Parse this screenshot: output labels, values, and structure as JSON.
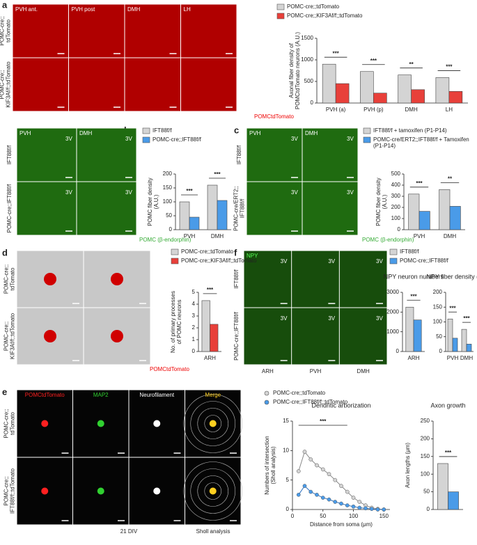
{
  "figure": {
    "a": {
      "letter": "a",
      "columns": [
        "PVH ant.",
        "PVH post",
        "DMH",
        "LH"
      ],
      "rows": [
        [
          "POMC-cre;;",
          "tdTomato"
        ],
        [
          "POMC-cre;;",
          "KIF3Af/f;;tdTomato"
        ]
      ],
      "caption": "POMCtdTomato"
    },
    "b": {
      "letter": "b",
      "columns": [
        "PVH",
        "DMH"
      ],
      "rows": [
        [
          "IFT88f/f"
        ],
        [
          "POMC-cre;;IFT88f/f"
        ]
      ],
      "marker": "3V",
      "caption": "POMC (β-endorphin)"
    },
    "c": {
      "letter": "c",
      "columns": [
        "PVH",
        "DMH"
      ],
      "rows": [
        [
          "IFT88f/f"
        ],
        [
          "POMC-cre/ERT2;;",
          "IFT88f/f"
        ]
      ],
      "marker": "3V",
      "caption": "POMC (β-endorphin)"
    },
    "d": {
      "letter": "d",
      "rows": [
        [
          "POMC-cre;;",
          "tdTomato"
        ],
        [
          "POMC-cre;;",
          "KIF3Af/f;;tdTomato"
        ]
      ],
      "caption": "POMCtdTomato"
    },
    "f": {
      "letter": "f",
      "tag": "NPY",
      "columns": [
        "ARH",
        "PVH",
        "DMH"
      ],
      "rows": [
        [
          "IFT88f/f"
        ],
        [
          "POMC-cre;;IFT88f/f"
        ]
      ],
      "marker": "3V"
    },
    "e": {
      "letter": "e",
      "columns": [
        "POMCtdTomato",
        "MAP2",
        "Neurofilament",
        "Merge"
      ],
      "rows": [
        [
          "POMC-cre;;",
          "tdTomato"
        ],
        [
          "POMC-cre;;",
          "IFT88f/f;;tdTomato"
        ]
      ],
      "captions": [
        "21 DIV",
        "Sholl analysis"
      ]
    }
  },
  "chart_data": [
    {
      "type": "bar",
      "ylabel": [
        "Axonal fiber density of",
        "POMCtdTomato neurons (A.U.)"
      ],
      "categories": [
        "PVH (a)",
        "PVH (p)",
        "DMH",
        "LH"
      ],
      "series": [
        {
          "name": "POMC-cre;;tdTomato",
          "color": "#d4d4d4",
          "values": [
            900,
            730,
            650,
            590
          ]
        },
        {
          "name": "POMC-cre;;KIF3Af/f;;tdTomato",
          "color": "#e8403a",
          "values": [
            450,
            230,
            310,
            270
          ]
        }
      ],
      "annotations": [
        "***",
        "***",
        "**",
        "***"
      ],
      "ylim": [
        0,
        1500
      ],
      "yticks": [
        0,
        500,
        1000,
        1500
      ]
    },
    {
      "type": "bar",
      "ylabel": [
        "POMC fiber density",
        "(A.U.)"
      ],
      "categories": [
        "PVH",
        "DMH"
      ],
      "series": [
        {
          "name": "IFT88f/f",
          "color": "#d4d4d4",
          "values": [
            100,
            160
          ]
        },
        {
          "name": "POMC-cre;;IFT88f/f",
          "color": "#4a9be8",
          "values": [
            45,
            105
          ]
        }
      ],
      "annotations": [
        "***",
        "***"
      ],
      "ylim": [
        0,
        200
      ],
      "yticks": [
        0,
        50,
        100,
        150,
        200
      ]
    },
    {
      "type": "bar",
      "ylabel": [
        "POMC fiber density",
        "(A.U.)"
      ],
      "categories": [
        "PVH",
        "DMH"
      ],
      "series": [
        {
          "name": "IFT88f/f + tamoxifen (P1-P14)",
          "color": "#d4d4d4",
          "values": [
            320,
            360
          ]
        },
        {
          "name": "POMC-cre/ERT2;;IFT88f/f + Tamoxifen (P1-P14)",
          "color": "#4a9be8",
          "values": [
            165,
            210
          ]
        }
      ],
      "annotations": [
        "***",
        "**"
      ],
      "ylim": [
        0,
        500
      ],
      "yticks": [
        0,
        100,
        200,
        300,
        400,
        500
      ]
    },
    {
      "type": "bar",
      "ylabel": [
        "No. of primary processes",
        "of POMC neurons"
      ],
      "categories": [
        "ARH"
      ],
      "series": [
        {
          "name": "POMC-cre;;tdTomato",
          "color": "#d4d4d4",
          "values": [
            4.3
          ]
        },
        {
          "name": "POMC-cre;;KIF3Af/f;;tdTomato",
          "color": "#e8403a",
          "values": [
            2.3
          ]
        }
      ],
      "annotations": [
        "***"
      ],
      "ylim": [
        0,
        5
      ],
      "yticks": [
        0,
        1,
        2,
        3,
        4,
        5
      ]
    },
    {
      "type": "bar",
      "title": "NPY neuron numbers",
      "categories": [
        "ARH"
      ],
      "series": [
        {
          "name": "IFT88f/f",
          "color": "#d4d4d4",
          "values": [
            2250
          ]
        },
        {
          "name": "POMC-cre;;IFT88f/f",
          "color": "#4a9be8",
          "values": [
            1600
          ]
        }
      ],
      "annotations": [
        "***"
      ],
      "ylim": [
        0,
        3000
      ],
      "yticks": [
        0,
        1000,
        2000,
        3000
      ]
    },
    {
      "type": "bar",
      "title": "NPY fiber density (A.U.)",
      "categories": [
        "PVH",
        "DMH"
      ],
      "series": [
        {
          "color": "#d4d4d4",
          "values": [
            110,
            75
          ]
        },
        {
          "color": "#4a9be8",
          "values": [
            45,
            25
          ]
        }
      ],
      "annotations": [
        "***",
        "***"
      ],
      "ylim": [
        0,
        200
      ],
      "yticks": [
        0,
        50,
        100,
        150,
        200
      ]
    },
    {
      "type": "line",
      "title": "Dendritic arborization",
      "ylabel": [
        "Numbers of intersection",
        "(Sholl analysis)"
      ],
      "xlabel": "Distance from soma (μm)",
      "x": [
        10,
        20,
        30,
        40,
        50,
        60,
        70,
        80,
        90,
        100,
        110,
        120,
        130,
        140,
        150
      ],
      "series": [
        {
          "name": "POMC-cre;;tdTomato",
          "color": "#d4d4d4",
          "values": [
            6.5,
            9.8,
            8.5,
            7.5,
            6.8,
            6,
            5,
            4,
            3,
            2,
            1.3,
            0.7,
            0.3,
            0.1,
            0
          ]
        },
        {
          "name": "POMC-cre;;IFT88f/f;;tdTomato",
          "color": "#4a9be8",
          "values": [
            2.5,
            4,
            3,
            2.5,
            2,
            1.7,
            1.3,
            1,
            0.7,
            0.5,
            0.3,
            0.2,
            0.1,
            0,
            0
          ]
        }
      ],
      "annotation": "***",
      "xlim": [
        0,
        160
      ],
      "ylim": [
        0,
        15
      ],
      "xticks": [
        0,
        50,
        100,
        150
      ],
      "yticks": [
        0,
        5,
        10,
        15
      ]
    },
    {
      "type": "bar",
      "title": "Axon growth",
      "ylabel": [
        "Axon lengths (μm)"
      ],
      "categories": [
        null
      ],
      "series": [
        {
          "color": "#d4d4d4",
          "values": [
            130
          ]
        },
        {
          "color": "#4a9be8",
          "values": [
            50
          ]
        }
      ],
      "annotations": [
        "***"
      ],
      "ylim": [
        0,
        250
      ],
      "yticks": [
        0,
        50,
        100,
        150,
        200,
        250
      ]
    }
  ]
}
